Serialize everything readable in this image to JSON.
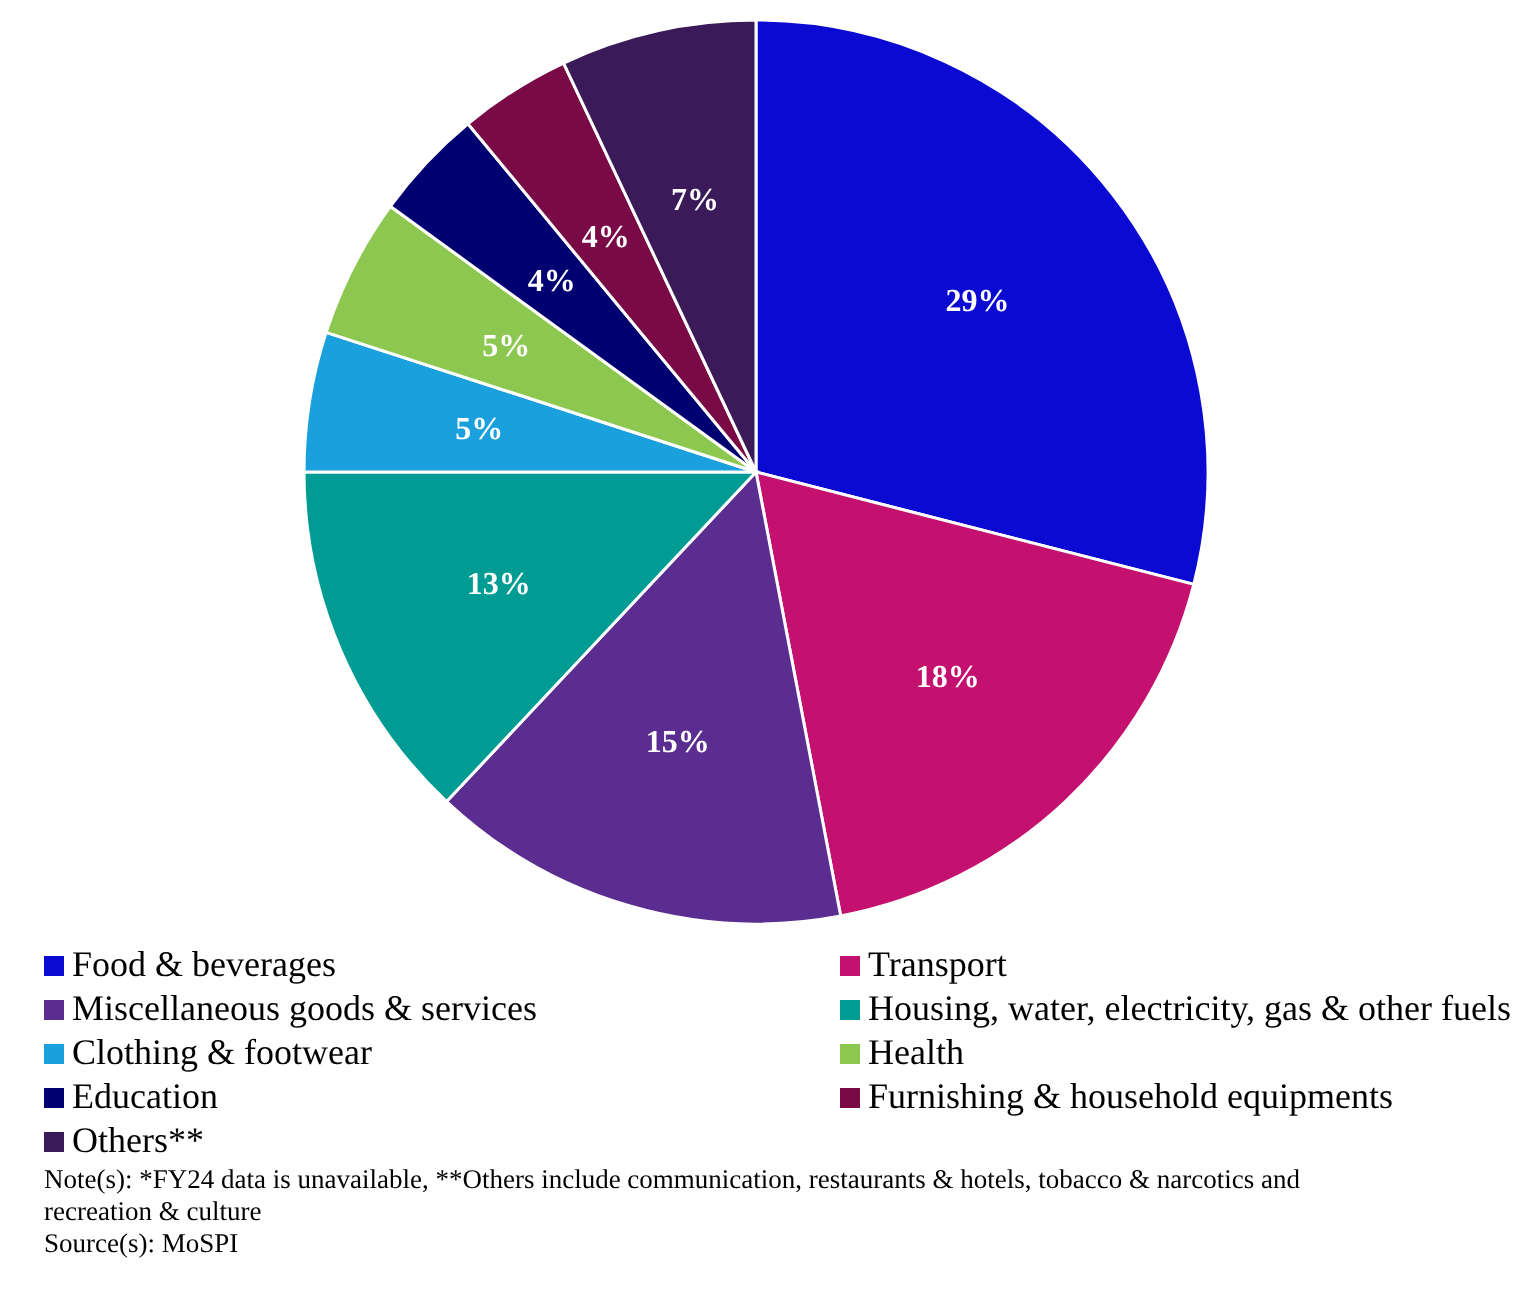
{
  "chart_data": {
    "type": "pie",
    "categories": [
      "Food & beverages",
      "Transport",
      "Miscellaneous goods & services",
      "Housing, water, electricity, gas & other fuels",
      "Clothing & footwear",
      "Health",
      "Education",
      "Furnishing & household equipments",
      "Others**"
    ],
    "values": [
      29,
      18,
      15,
      13,
      5,
      5,
      4,
      4,
      7
    ],
    "colors": [
      "#0a0ad2",
      "#c4106e",
      "#5c2d91",
      "#009c94",
      "#1aa0dc",
      "#8cc850",
      "#000070",
      "#7a0a46",
      "#3a1a58"
    ],
    "value_labels": [
      "29%",
      "18%",
      "15%",
      "13%",
      "5%",
      "5%",
      "4%",
      "4%",
      "7%"
    ],
    "legend": "bottom",
    "annotations": [
      "Note(s): *FY24 data is unavailable, **Others include communication, restaurants & hotels, tobacco & narcotics and recreation & culture",
      "Source(s): MoSPI"
    ]
  }
}
